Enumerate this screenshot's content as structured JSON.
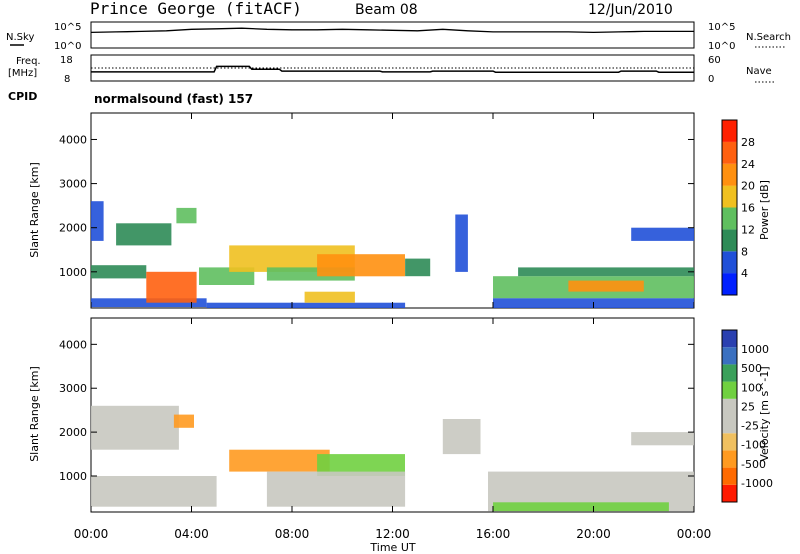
{
  "header": {
    "station": "Prince George (fitACF)",
    "beam": "Beam 08",
    "date": "12/Jun/2010"
  },
  "panel_labels": {
    "nsky": "N.Sky",
    "nsky_top": "10^5",
    "nsky_bottom": "10^0",
    "nsearch": "N.Search",
    "nsearch_top": "10^5",
    "nsearch_bottom": "10^0",
    "freq": "Freq.",
    "freq_unit": "[MHz]",
    "freq_top": "18",
    "freq_bottom": "8",
    "nave": "Nave",
    "nave_top": "60",
    "nave_bottom": "0",
    "cpid": "CPID",
    "mode": "normalsound (fast) 157"
  },
  "colors": {
    "power": [
      "#0020ff",
      "#2050d8",
      "#2e8b57",
      "#5fbf5f",
      "#f0c020",
      "#ff9010",
      "#ff6010",
      "#ff2000"
    ],
    "velocity": [
      "#ff1a00",
      "#ff6a00",
      "#ff9a20",
      "#f0c060",
      "#c8c8c0",
      "#c8c8c0",
      "#70d040",
      "#3aa05a",
      "#3a70c0",
      "#2a40b0"
    ]
  },
  "chart_data": [
    {
      "type": "line",
      "name": "sky-noise",
      "ylabel": "N.Sky",
      "x": [
        0,
        1,
        2,
        3,
        4,
        5,
        6,
        7,
        8,
        9,
        10,
        11,
        12,
        13,
        14,
        15,
        16,
        17,
        18,
        19,
        20,
        21,
        22,
        23,
        24
      ],
      "series": [
        {
          "values": [
            3.0,
            3.1,
            3.2,
            3.3,
            3.6,
            3.7,
            3.8,
            3.6,
            3.5,
            3.5,
            3.6,
            3.5,
            3.4,
            3.3,
            3.6,
            3.3,
            3.1,
            3.1,
            3.1,
            3.1,
            3.0,
            3.1,
            3.2,
            3.2,
            3.2
          ]
        }
      ],
      "ylim": [
        0,
        5
      ]
    },
    {
      "type": "line",
      "name": "frequency",
      "ylabel": "Freq. [MHz]",
      "ylim": [
        8,
        18
      ],
      "x": [
        0,
        4.9,
        5.0,
        6.3,
        6.4,
        7.5,
        7.6,
        11.5,
        11.6,
        13.5,
        13.6,
        16.0,
        16.1,
        21.0,
        21.1,
        22.5,
        22.6,
        24
      ],
      "series": [
        {
          "values": [
            11.5,
            11.5,
            13.6,
            13.6,
            12.5,
            12.5,
            11.8,
            11.8,
            11.5,
            11.5,
            11.8,
            11.8,
            11.4,
            11.4,
            11.8,
            11.8,
            11.4,
            11.4
          ]
        }
      ],
      "right_ylim": [
        0,
        60
      ],
      "right_ylabel": "Nave"
    },
    {
      "type": "heatmap",
      "name": "power",
      "xlabel": "",
      "ylabel": "Slant Range [km]",
      "xlim": [
        0,
        24
      ],
      "ylim": [
        180,
        4600
      ],
      "xticks": [
        "00:00",
        "04:00",
        "08:00",
        "12:00",
        "16:00",
        "20:00",
        "00:00"
      ],
      "yticks": [
        1000,
        2000,
        3000,
        4000
      ],
      "colorbar": {
        "label": "Power [dB]",
        "ticks": [
          4,
          8,
          12,
          16,
          20,
          24,
          28
        ],
        "range": [
          0,
          32
        ]
      },
      "regions": [
        {
          "t": [
            0.0,
            4.6
          ],
          "r": [
            200,
            400
          ],
          "v": 6
        },
        {
          "t": [
            0.0,
            2.2
          ],
          "r": [
            850,
            1150
          ],
          "v": 9
        },
        {
          "t": [
            0.0,
            0.5
          ],
          "r": [
            1700,
            2600
          ],
          "v": 5
        },
        {
          "t": [
            1.0,
            3.2
          ],
          "r": [
            1600,
            2100
          ],
          "v": 11
        },
        {
          "t": [
            2.2,
            4.2
          ],
          "r": [
            300,
            1000
          ],
          "v": 24
        },
        {
          "t": [
            3.4,
            4.2
          ],
          "r": [
            2100,
            2450
          ],
          "v": 14
        },
        {
          "t": [
            4.3,
            6.5
          ],
          "r": [
            700,
            1100
          ],
          "v": 12
        },
        {
          "t": [
            4.6,
            12.5
          ],
          "r": [
            180,
            300
          ],
          "v": 5
        },
        {
          "t": [
            5.5,
            10.5
          ],
          "r": [
            1000,
            1600
          ],
          "v": 16
        },
        {
          "t": [
            7.0,
            10.5
          ],
          "r": [
            800,
            1100
          ],
          "v": 13
        },
        {
          "t": [
            9.0,
            12.5
          ],
          "r": [
            900,
            1400
          ],
          "v": 22
        },
        {
          "t": [
            8.5,
            10.5
          ],
          "r": [
            300,
            550
          ],
          "v": 18
        },
        {
          "t": [
            12.5,
            13.5
          ],
          "r": [
            900,
            1300
          ],
          "v": 8
        },
        {
          "t": [
            14.5,
            15.0
          ],
          "r": [
            1000,
            2300
          ],
          "v": 6
        },
        {
          "t": [
            16.0,
            24.0
          ],
          "r": [
            400,
            900
          ],
          "v": 15
        },
        {
          "t": [
            16.0,
            24.0
          ],
          "r": [
            180,
            400
          ],
          "v": 7
        },
        {
          "t": [
            17.0,
            24.0
          ],
          "r": [
            900,
            1100
          ],
          "v": 8
        },
        {
          "t": [
            21.5,
            24.0
          ],
          "r": [
            1700,
            2000
          ],
          "v": 7
        },
        {
          "t": [
            19.0,
            22.0
          ],
          "r": [
            550,
            800
          ],
          "v": 21
        }
      ]
    },
    {
      "type": "heatmap",
      "name": "velocity",
      "xlabel": "Time UT",
      "ylabel": "Slant Range [km]",
      "xlim": [
        0,
        24
      ],
      "ylim": [
        180,
        4600
      ],
      "xticks": [
        "00:00",
        "04:00",
        "08:00",
        "12:00",
        "16:00",
        "20:00",
        "00:00"
      ],
      "yticks": [
        1000,
        2000,
        3000,
        4000
      ],
      "colorbar": {
        "label": "Velocity [m s^-1]",
        "ticks": [
          "-1000",
          "-500",
          "-100",
          "-25",
          "25",
          "100",
          "500",
          "1000"
        ]
      },
      "regions": [
        {
          "t": [
            0.0,
            5.0
          ],
          "r": [
            300,
            1000
          ],
          "v": 0
        },
        {
          "t": [
            0.0,
            3.5
          ],
          "r": [
            1600,
            2600
          ],
          "v": 0
        },
        {
          "t": [
            3.3,
            4.1
          ],
          "r": [
            2100,
            2400
          ],
          "v": -300
        },
        {
          "t": [
            5.5,
            9.5
          ],
          "r": [
            1100,
            1600
          ],
          "v": -200
        },
        {
          "t": [
            9.0,
            12.5
          ],
          "r": [
            1000,
            1500
          ],
          "v": 150
        },
        {
          "t": [
            7.0,
            12.5
          ],
          "r": [
            300,
            1100
          ],
          "v": 0
        },
        {
          "t": [
            14.0,
            15.5
          ],
          "r": [
            1500,
            2300
          ],
          "v": 0
        },
        {
          "t": [
            15.8,
            24.0
          ],
          "r": [
            200,
            1100
          ],
          "v": 0
        },
        {
          "t": [
            16.0,
            23.0
          ],
          "r": [
            200,
            400
          ],
          "v": 150
        },
        {
          "t": [
            21.5,
            24.0
          ],
          "r": [
            1700,
            2000
          ],
          "v": 0
        }
      ]
    }
  ]
}
